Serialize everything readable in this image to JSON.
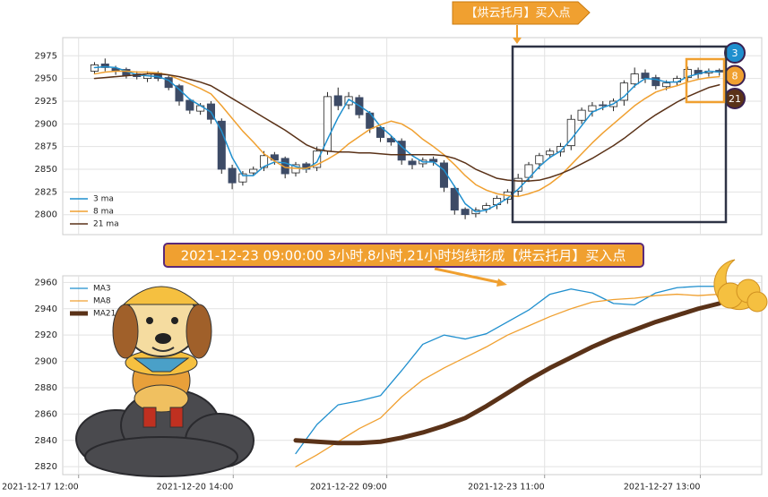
{
  "chart_data": [
    {
      "type": "candlestick",
      "annotations": [
        "【烘云托月】买入点"
      ],
      "xlim": [
        -3,
        63
      ],
      "ylim": [
        2778,
        2995
      ],
      "yticks": [
        2800,
        2825,
        2850,
        2875,
        2900,
        2925,
        2950,
        2975
      ],
      "up_color": "#ffffff",
      "down_color": "#3d4b66",
      "legend": "lower left",
      "open": [
        2958,
        2966,
        2961,
        2960,
        2955,
        2950,
        2956,
        2951,
        2942,
        2926,
        2914,
        2922,
        2903,
        2851,
        2836,
        2846,
        2852,
        2866,
        2862,
        2846,
        2856,
        2852,
        2870,
        2931,
        2921,
        2929,
        2912,
        2896,
        2884,
        2881,
        2859,
        2856,
        2861,
        2857,
        2829,
        2806,
        2801,
        2806,
        2811,
        2817,
        2826,
        2841,
        2856,
        2866,
        2869,
        2876,
        2904,
        2914,
        2921,
        2919,
        2926,
        2944,
        2956,
        2951,
        2941,
        2946,
        2951,
        2959,
        2956,
        2959
      ],
      "high": [
        2968,
        2972,
        2964,
        2962,
        2958,
        2958,
        2958,
        2953,
        2944,
        2928,
        2923,
        2925,
        2906,
        2855,
        2848,
        2853,
        2870,
        2869,
        2864,
        2858,
        2858,
        2875,
        2935,
        2940,
        2935,
        2932,
        2914,
        2898,
        2887,
        2884,
        2862,
        2863,
        2864,
        2860,
        2832,
        2808,
        2808,
        2813,
        2821,
        2828,
        2845,
        2858,
        2868,
        2873,
        2879,
        2910,
        2918,
        2924,
        2925,
        2928,
        2948,
        2962,
        2960,
        2954,
        2948,
        2953,
        2963,
        2962,
        2961,
        2961
      ],
      "low": [
        2955,
        2958,
        2954,
        2950,
        2949,
        2946,
        2947,
        2937,
        2920,
        2911,
        2910,
        2900,
        2845,
        2828,
        2832,
        2843,
        2848,
        2855,
        2840,
        2842,
        2846,
        2848,
        2866,
        2915,
        2916,
        2906,
        2890,
        2880,
        2876,
        2855,
        2850,
        2852,
        2854,
        2825,
        2800,
        2795,
        2797,
        2802,
        2806,
        2812,
        2820,
        2836,
        2850,
        2862,
        2864,
        2871,
        2900,
        2908,
        2915,
        2914,
        2920,
        2940,
        2945,
        2938,
        2937,
        2942,
        2946,
        2950,
        2952,
        2953
      ],
      "close": [
        2965,
        2962,
        2958,
        2953,
        2952,
        2955,
        2950,
        2940,
        2925,
        2915,
        2920,
        2905,
        2850,
        2835,
        2845,
        2850,
        2865,
        2860,
        2845,
        2855,
        2850,
        2870,
        2930,
        2920,
        2930,
        2910,
        2895,
        2885,
        2880,
        2860,
        2855,
        2860,
        2858,
        2830,
        2805,
        2800,
        2805,
        2810,
        2818,
        2825,
        2840,
        2855,
        2865,
        2870,
        2875,
        2905,
        2915,
        2920,
        2920,
        2925,
        2945,
        2955,
        2950,
        2942,
        2945,
        2950,
        2960,
        2955,
        2958,
        2957
      ],
      "series": [
        {
          "name": "3 ma",
          "period": 3,
          "color": "#1f8fce",
          "values": [
            2962,
            2963,
            2962,
            2958,
            2954,
            2953,
            2952,
            2948,
            2938,
            2927,
            2920,
            2913,
            2892,
            2863,
            2843,
            2843,
            2853,
            2858,
            2857,
            2853,
            2850,
            2858,
            2883,
            2907,
            2927,
            2920,
            2912,
            2897,
            2887,
            2875,
            2865,
            2858,
            2858,
            2849,
            2831,
            2812,
            2803,
            2805,
            2811,
            2818,
            2828,
            2840,
            2853,
            2863,
            2870,
            2883,
            2898,
            2913,
            2918,
            2922,
            2930,
            2942,
            2950,
            2949,
            2946,
            2946,
            2952,
            2955,
            2958,
            2957
          ]
        },
        {
          "name": "8 ma",
          "period": 8,
          "color": "#f0a030",
          "values": [
            2955,
            2957,
            2958,
            2958,
            2957,
            2957,
            2956,
            2954,
            2949,
            2944,
            2939,
            2933,
            2920,
            2906,
            2892,
            2880,
            2867,
            2859,
            2852,
            2851,
            2851,
            2855,
            2861,
            2868,
            2878,
            2886,
            2894,
            2899,
            2903,
            2900,
            2893,
            2883,
            2875,
            2866,
            2855,
            2843,
            2833,
            2827,
            2823,
            2821,
            2820,
            2823,
            2827,
            2834,
            2843,
            2855,
            2867,
            2879,
            2890,
            2900,
            2910,
            2920,
            2928,
            2935,
            2939,
            2942,
            2946,
            2949,
            2951,
            2952
          ]
        },
        {
          "name": "21 ma",
          "period": 21,
          "color": "#5a3218",
          "values": [
            2950,
            2951,
            2952,
            2953,
            2954,
            2955,
            2955,
            2954,
            2952,
            2949,
            2946,
            2942,
            2935,
            2928,
            2921,
            2914,
            2907,
            2900,
            2893,
            2885,
            2877,
            2872,
            2870,
            2869,
            2869,
            2868,
            2868,
            2867,
            2866,
            2866,
            2866,
            2866,
            2866,
            2865,
            2862,
            2857,
            2850,
            2845,
            2840,
            2838,
            2837,
            2837,
            2838,
            2841,
            2845,
            2850,
            2856,
            2862,
            2869,
            2876,
            2884,
            2893,
            2902,
            2910,
            2917,
            2924,
            2930,
            2935,
            2940,
            2943
          ]
        }
      ]
    },
    {
      "type": "line",
      "annotations": [
        "2021-12-23 09:00:00 3小时,8小时,21小时均线形成【烘云托月】买入点"
      ],
      "xlim": [
        -3,
        63
      ],
      "ylim": [
        2814,
        2965
      ],
      "yticks": [
        2820,
        2840,
        2860,
        2880,
        2900,
        2920,
        2940,
        2960
      ],
      "xticks": [
        {
          "value": -1.5,
          "label": "2021-12-17 12:00"
        },
        {
          "value": 13.1,
          "label": "2021-12-20 14:00"
        },
        {
          "value": 27.6,
          "label": "2021-12-22 09:00"
        },
        {
          "value": 42.5,
          "label": "2021-12-23 11:00"
        },
        {
          "value": 57.2,
          "label": "2021-12-27 13:00"
        }
      ],
      "legend": "upper left",
      "grid": true,
      "x": [
        19,
        21,
        23,
        25,
        27,
        29,
        31,
        33,
        35,
        37,
        39,
        41,
        43,
        45,
        47,
        49,
        51,
        53,
        55,
        57,
        59
      ],
      "series": [
        {
          "name": "MA3",
          "color": "#1f8fce",
          "width": 1.3,
          "values": [
            2830,
            2852,
            2867,
            2870,
            2874,
            2893,
            2913,
            2920,
            2917,
            2921,
            2930,
            2939,
            2951,
            2955,
            2952,
            2944,
            2943,
            2952,
            2956,
            2957,
            2957
          ]
        },
        {
          "name": "MA8",
          "color": "#f0a030",
          "width": 1.3,
          "values": [
            2820,
            2829,
            2839,
            2849,
            2857,
            2873,
            2886,
            2895,
            2903,
            2911,
            2920,
            2927,
            2934,
            2940,
            2945,
            2947,
            2948,
            2950,
            2951,
            2950,
            2951
          ]
        },
        {
          "name": "MA21",
          "color": "#5a3218",
          "width": 5,
          "values": [
            2840,
            2839,
            2838,
            2838,
            2839,
            2842,
            2846,
            2851,
            2857,
            2866,
            2876,
            2886,
            2895,
            2903,
            2911,
            2918,
            2924,
            2930,
            2935,
            2940,
            2944
          ]
        }
      ]
    }
  ]
}
